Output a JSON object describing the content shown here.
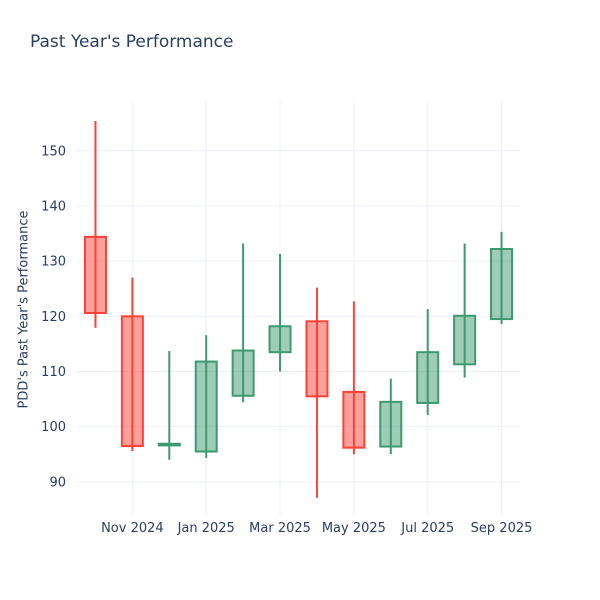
{
  "title": "Past Year's Performance",
  "chart_data": {
    "type": "candlestick",
    "title": "Past Year's Performance",
    "xlabel": "",
    "ylabel": "PDD's Past Year's Performance",
    "categories": [
      "Oct 2024",
      "Nov 2024",
      "Dec 2024",
      "Jan 2025",
      "Feb 2025",
      "Mar 2025",
      "Apr 2025",
      "May 2025",
      "Jun 2025",
      "Jul 2025",
      "Aug 2025",
      "Sep 2025"
    ],
    "series": [
      {
        "name": "PDD",
        "open": [
          134.4,
          120.0,
          96.6,
          95.5,
          105.6,
          113.5,
          119.1,
          106.3,
          96.4,
          104.3,
          111.3,
          119.5
        ],
        "high": [
          155.4,
          127.0,
          113.7,
          116.6,
          133.2,
          131.3,
          125.2,
          122.7,
          108.7,
          121.3,
          133.2,
          135.3
        ],
        "low": [
          117.9,
          95.6,
          94.0,
          94.3,
          104.4,
          110.0,
          87.1,
          95.0,
          95.0,
          102.1,
          108.9,
          118.6
        ],
        "close": [
          120.6,
          96.5,
          96.9,
          111.8,
          113.8,
          118.2,
          105.5,
          96.2,
          104.5,
          113.5,
          120.1,
          132.2
        ]
      }
    ],
    "x_tick_labels": [
      "Nov 2024",
      "Jan 2025",
      "Mar 2025",
      "May 2025",
      "Jul 2025",
      "Sep 2025"
    ],
    "x_tick_positions": [
      1,
      3,
      5,
      7,
      9,
      11
    ],
    "y_ticks": [
      90,
      100,
      110,
      120,
      130,
      140,
      150
    ],
    "ylim": [
      84.9,
      159.2
    ],
    "grid": true,
    "legend": "none",
    "colors": {
      "increasing_line": "#3d9970",
      "increasing_fill": "rgba(61,153,112,0.5)",
      "decreasing_line": "#ff4136",
      "decreasing_fill": "rgba(255,65,54,0.5)",
      "grid": "#ebf0f8",
      "text": "#2a3f5f",
      "background": "#ffffff"
    }
  }
}
